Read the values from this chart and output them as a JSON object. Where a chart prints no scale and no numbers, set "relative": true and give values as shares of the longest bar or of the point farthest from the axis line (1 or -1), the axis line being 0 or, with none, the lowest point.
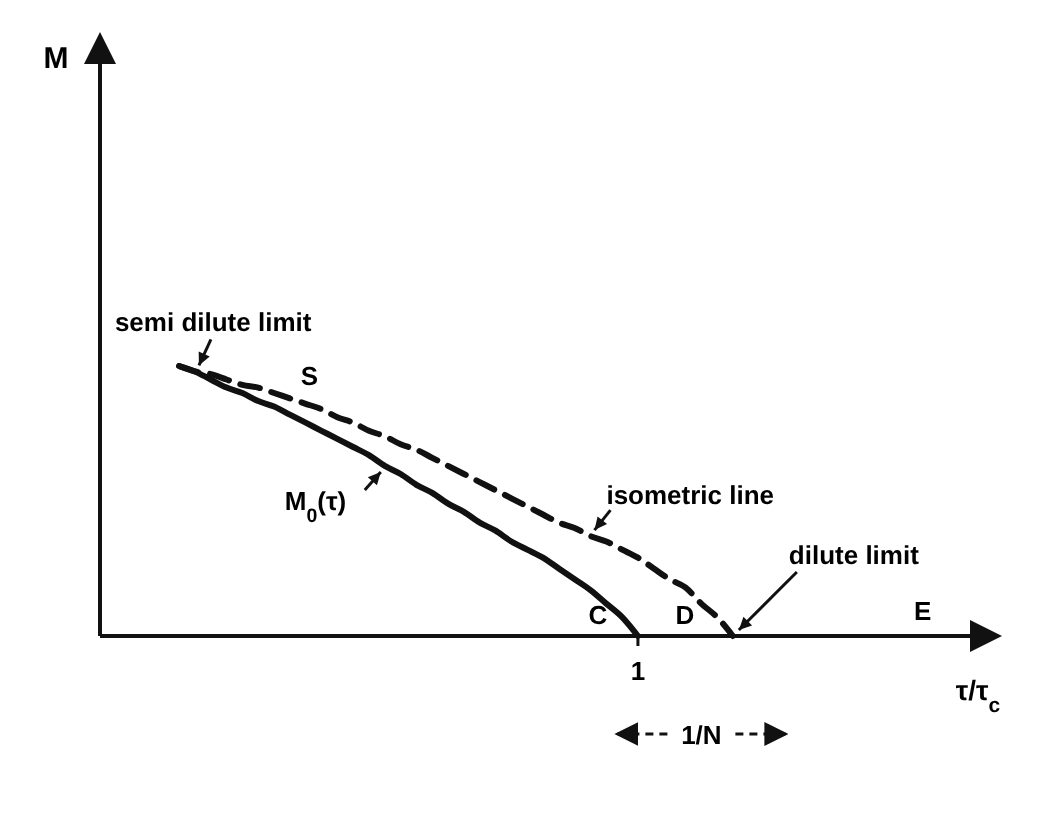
{
  "chart_data": {
    "type": "line",
    "relative": true,
    "xlabel": "τ/τ$_{c}$",
    "marker": "none",
    "categories": [
      null,
      null,
      null,
      null,
      null,
      null,
      null,
      null,
      null,
      null,
      null,
      null,
      null,
      null,
      null,
      null,
      null,
      null,
      null,
      null,
      null,
      null,
      null,
      null,
      null,
      null,
      null,
      null,
      null,
      null,
      null,
      null,
      null,
      null,
      null,
      null,
      null,
      null,
      null,
      null,
      null,
      null,
      null,
      null,
      null,
      null,
      null,
      null,
      null,
      null,
      null,
      null,
      null,
      null,
      null,
      null,
      null
    ],
    "series": [
      {
        "name": "M$_{0}$(τ)",
        "color": "#111111",
        "line_style": "solid",
        "values": [
          null,
          null,
          null,
          null,
          null,
          1.0,
          0.98,
          0.95,
          0.92,
          0.9,
          0.87,
          0.85,
          0.82,
          0.79,
          0.76,
          0.73,
          0.7,
          0.67,
          0.63,
          0.6,
          0.56,
          0.53,
          0.49,
          0.46,
          0.42,
          0.39,
          0.35,
          0.32,
          0.29,
          0.25,
          0.21,
          0.17,
          0.12,
          0.07,
          0,
          null,
          null,
          null,
          null,
          null,
          null,
          null,
          null,
          null,
          null,
          null,
          null,
          null,
          null,
          null,
          null,
          null,
          null,
          null,
          null,
          null,
          null
        ]
      },
      {
        "name": "isometric line",
        "color": "#111111",
        "line_style": "dashed",
        "values": [
          null,
          null,
          null,
          null,
          null,
          1.0,
          0.98,
          0.97,
          0.95,
          0.93,
          0.92,
          0.9,
          0.88,
          0.86,
          0.84,
          0.81,
          0.79,
          0.76,
          0.74,
          0.71,
          0.69,
          0.66,
          0.63,
          0.6,
          0.57,
          0.54,
          0.51,
          0.48,
          0.45,
          0.42,
          0.4,
          0.37,
          0.35,
          0.32,
          0.29,
          0.25,
          0.21,
          0.18,
          0.12,
          0.07,
          0,
          null,
          null,
          null,
          null,
          null,
          null,
          null,
          null,
          null,
          null,
          null,
          null,
          null,
          null,
          null,
          null
        ]
      }
    ],
    "annotations": [
      "semi dilute limit",
      "S",
      "C",
      "D",
      "dilute limit",
      "E",
      "1",
      "1/N",
      "M"
    ]
  }
}
